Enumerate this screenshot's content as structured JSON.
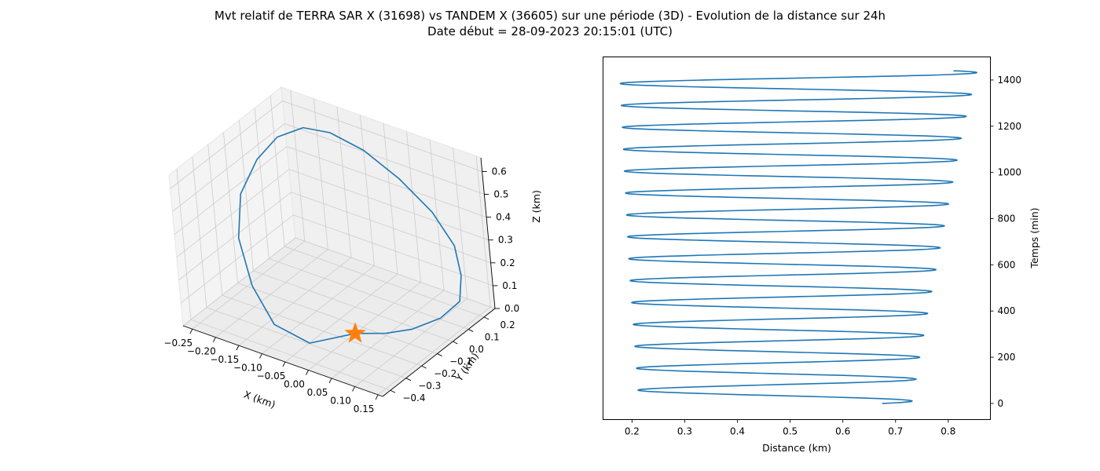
{
  "figure": {
    "title_line1": "Mvt relatif de TERRA SAR X (31698) vs TANDEM X (36605) sur une période (3D) - Evolution de la distance sur 24h",
    "title_line2": "Date début = 28-09-2023 20:15:01 (UTC)"
  },
  "colors": {
    "series": "#1f77b4",
    "marker": "#ff7f0e",
    "pane": "#f2f2f2",
    "grid": "#cccccc"
  },
  "chart_data": [
    {
      "type": "line3d",
      "xlabel": "X (km)",
      "ylabel": "Y (km)",
      "zlabel": "Z (km)",
      "xticks": [
        "−0.25",
        "−0.20",
        "−0.15",
        "−0.10",
        "−0.05",
        "0.00",
        "0.05",
        "0.10",
        "0.15"
      ],
      "yticks": [
        "−0.4",
        "−0.3",
        "−0.2",
        "−0.1",
        "0.0",
        "0.1",
        "0.2"
      ],
      "zticks": [
        "0.0",
        "0.1",
        "0.2",
        "0.3",
        "0.4",
        "0.5",
        "0.6"
      ],
      "xlim": [
        -0.27,
        0.16
      ],
      "ylim": [
        -0.45,
        0.27
      ],
      "zlim": [
        0,
        0.66
      ],
      "grid": true,
      "series": [
        {
          "x": [
            0.0,
            0.05,
            0.09,
            0.13,
            0.15,
            0.14,
            0.12,
            0.07,
            0.0,
            -0.07,
            -0.13,
            -0.17,
            -0.2,
            -0.22,
            -0.23,
            -0.21,
            -0.16,
            -0.1,
            -0.04,
            0.0
          ],
          "y": [
            -0.15,
            -0.1,
            -0.05,
            0.02,
            0.09,
            0.14,
            0.17,
            0.19,
            0.2,
            0.19,
            0.16,
            0.11,
            0.03,
            -0.05,
            -0.14,
            -0.23,
            -0.31,
            -0.36,
            -0.32,
            -0.15
          ],
          "z": [
            0.0,
            0.01,
            0.03,
            0.07,
            0.12,
            0.2,
            0.3,
            0.4,
            0.49,
            0.57,
            0.62,
            0.64,
            0.62,
            0.55,
            0.44,
            0.31,
            0.18,
            0.08,
            0.02,
            0.0
          ]
        }
      ],
      "marker": {
        "shape": "star",
        "x": 0.0,
        "y": -0.15,
        "z": 0.0
      }
    },
    {
      "type": "line",
      "xlabel": "Distance (km)",
      "ylabel": "Temps (min)",
      "yaxis_side": "right",
      "xticks": [
        0.2,
        0.3,
        0.4,
        0.5,
        0.6,
        0.7,
        0.8
      ],
      "yticks": [
        0,
        200,
        400,
        600,
        800,
        1000,
        1200,
        1400
      ],
      "xlim": [
        0.145,
        0.88
      ],
      "ylim": [
        -70,
        1500
      ],
      "grid": false,
      "series": [
        {
          "orbit_period_min": 94.8,
          "peak_distance": [
            0.725,
            0.734,
            0.741,
            0.748,
            0.756,
            0.763,
            0.771,
            0.779,
            0.787,
            0.795,
            0.803,
            0.811,
            0.819,
            0.827,
            0.837,
            0.847,
            0.857
          ],
          "min_distance": [
            0.215,
            0.212,
            0.209,
            0.206,
            0.203,
            0.2,
            0.197,
            0.194,
            0.192,
            0.19,
            0.188,
            0.186,
            0.184,
            0.182,
            0.18,
            0.178,
            0.176
          ],
          "bump_distance": [
            0.275,
            0.265,
            0.255,
            0.245,
            0.24,
            0.232,
            0.226,
            0.22,
            0.215,
            0.212,
            0.209,
            0.207,
            0.205,
            0.203,
            0.201,
            0.199,
            0.197
          ],
          "t_start": 0,
          "t_end": 1440
        }
      ]
    }
  ]
}
